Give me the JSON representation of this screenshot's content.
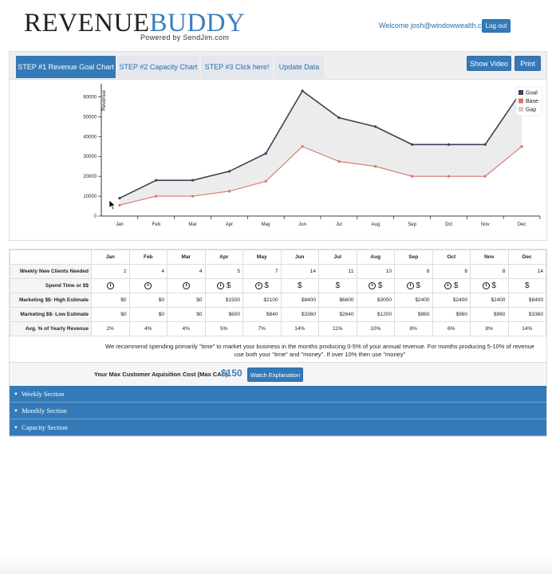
{
  "header": {
    "logo_part1": "REVENUE",
    "logo_part2": "BUDDY",
    "logo_sub": "Powered by SendJim.com",
    "welcome": "Welcome josh@windowwealth.com",
    "logout_label": "Log out"
  },
  "tabs": [
    {
      "label": "STEP #1 Revenue Goal Chart",
      "active": true
    },
    {
      "label": "STEP #2 Capacity Chart",
      "active": false
    },
    {
      "label": "STEP #3 Click here!",
      "active": false
    },
    {
      "label": "Update Data",
      "active": false
    }
  ],
  "toolbar": {
    "show_video": "Show Video",
    "print": "Print"
  },
  "chart_data": {
    "type": "line",
    "categories": [
      "Jan",
      "Feb",
      "Mar",
      "Apr",
      "May",
      "Jun",
      "Jul",
      "Aug",
      "Sep",
      "Oct",
      "Nov",
      "Dec"
    ],
    "ylabel": "Revenue",
    "ylim": [
      0,
      65000
    ],
    "yticks": [
      0,
      10000,
      20000,
      30000,
      40000,
      50000,
      60000
    ],
    "series": [
      {
        "name": "Goal",
        "color": "#3b4257",
        "values": [
          9000,
          18000,
          18000,
          22500,
          31500,
          63000,
          49500,
          45000,
          36000,
          36000,
          36000,
          63000
        ]
      },
      {
        "name": "Base",
        "color": "#d9736b",
        "values": [
          5500,
          10000,
          10000,
          12500,
          17500,
          35000,
          27500,
          25000,
          20000,
          20000,
          20000,
          35000
        ]
      },
      {
        "name": "Gap",
        "color": "#cfcfcf"
      }
    ],
    "legend": "top-right"
  },
  "table": {
    "headers": [
      "Jan",
      "Feb",
      "Mar",
      "Apr",
      "May",
      "Jun",
      "Jul",
      "Aug",
      "Sep",
      "Oct",
      "Nov",
      "Dec"
    ],
    "rows": [
      {
        "label": "Weekly New Clients Needed",
        "type": "num",
        "cells": [
          "2",
          "4",
          "4",
          "5",
          "7",
          "14",
          "11",
          "10",
          "8",
          "8",
          "8",
          "14"
        ]
      },
      {
        "label": "Spend Time or $$",
        "type": "icon",
        "cells": [
          "time",
          "time",
          "time",
          "time+money",
          "time+money",
          "money",
          "money",
          "time+money",
          "time+money",
          "time+money",
          "time+money",
          "money"
        ]
      },
      {
        "label": "Marketing $$- High Estimate",
        "type": "num",
        "cells": [
          "$0",
          "$0",
          "$0",
          "$1500",
          "$2100",
          "$8400",
          "$6600",
          "$3000",
          "$2400",
          "$2400",
          "$2400",
          "$8400"
        ]
      },
      {
        "label": "Marketing $$- Low Estimate",
        "type": "num",
        "cells": [
          "$0",
          "$0",
          "$0",
          "$600",
          "$840",
          "$3360",
          "$2640",
          "$1200",
          "$960",
          "$960",
          "$960",
          "$3360"
        ]
      },
      {
        "label": "Avg. % of Yearly Revenue",
        "type": "center",
        "cells": [
          "2%",
          "4%",
          "4%",
          "5%",
          "7%",
          "14%",
          "11%",
          "10%",
          "8%",
          "6%",
          "8%",
          "14%"
        ]
      }
    ]
  },
  "recommendation": "We recommend spending primarily \"time\" to market your business in the months producing 0-5% of your annual revenue. For months producing 5-10% of revenue use both your \"time\" and \"money\". If over 10% then use \"money\"",
  "cac": {
    "label": "Your Max Customer Aquisition Cost (Max CAC):",
    "value": "$150",
    "button": "Watch Explanation"
  },
  "sections": [
    "Weekly Section",
    "Monthly Section",
    "Capacity Section"
  ]
}
